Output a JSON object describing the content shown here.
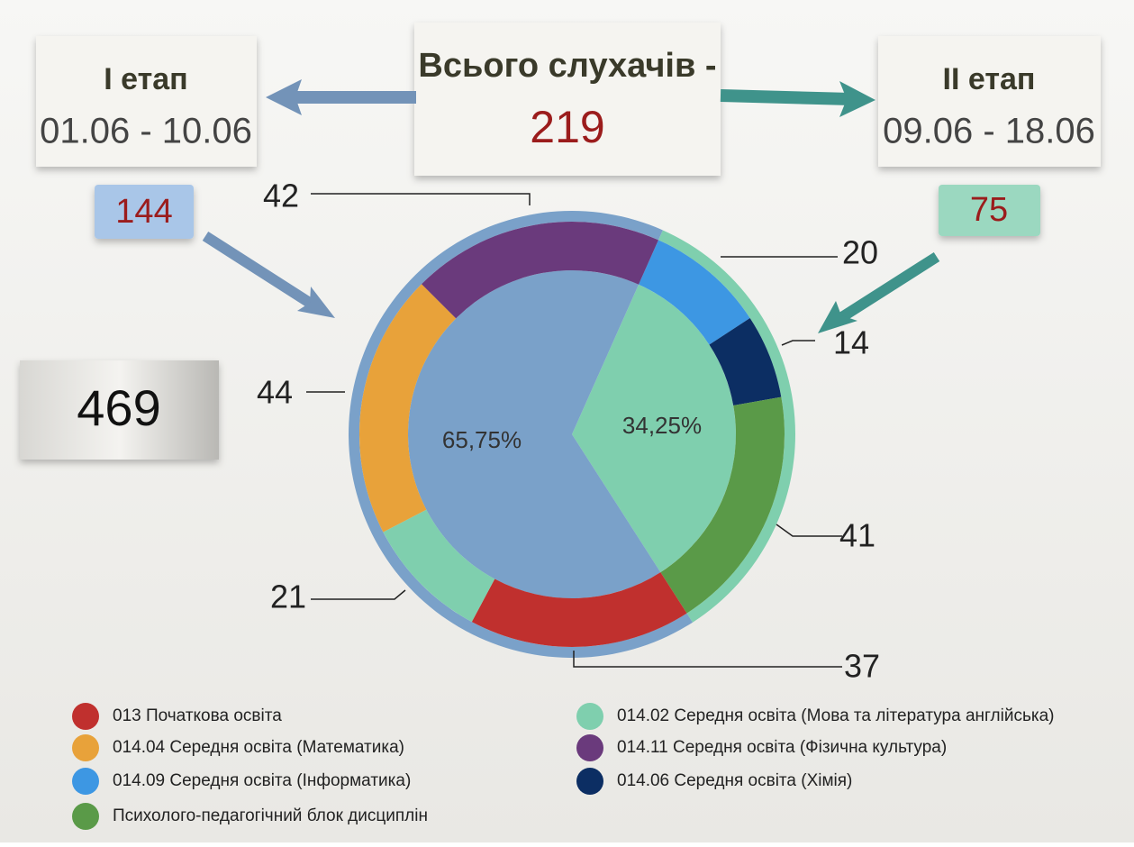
{
  "header": {
    "stage1": {
      "title": "І етап",
      "dates": "01.06 - 10.06",
      "count": 144
    },
    "total": {
      "title": "Всього слухачів -",
      "count": 219
    },
    "stage2": {
      "title": "ІІ етап",
      "dates": "09.06 - 18.06",
      "count": 75
    },
    "grand_total": 469
  },
  "chart_data": {
    "type": "donut",
    "inner": {
      "values": [
        34.25,
        65.75
      ],
      "value_labels": [
        "34,25%",
        "65,75%"
      ],
      "colors": [
        "#7fcfae",
        "#7aa1c9"
      ]
    },
    "outer": {
      "categories": [
        "014.09 Середня освіта (Інформатика)",
        "014.06 Середня освіта (Хімія)",
        "Психолого-педагогічний блок дисциплін",
        "013 Початкова освіта",
        "014.02 Середня освіта (Мова та література англійська)",
        "014.04 Середня освіта (Математика)",
        "014.11 Середня освіта (Фізична культура)"
      ],
      "values": [
        20,
        14,
        41,
        37,
        21,
        44,
        42
      ],
      "colors": [
        "#3d97e3",
        "#0c2e63",
        "#5a9a48",
        "#c0302e",
        "#7fcfae",
        "#e8a23a",
        "#6a3a7c"
      ]
    }
  }
}
